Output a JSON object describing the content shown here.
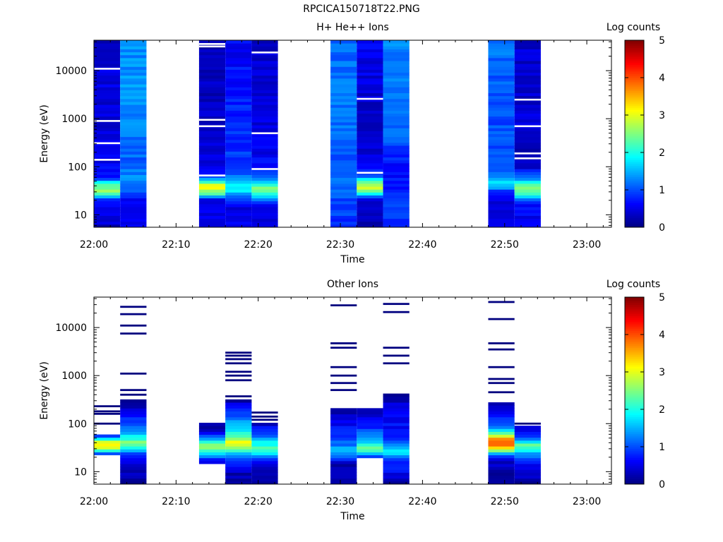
{
  "page": {
    "title": "RPCICA150718T22.PNG"
  },
  "colorbar": {
    "label": "Log counts",
    "ticks": [
      "0",
      "1",
      "2",
      "3",
      "4",
      "5"
    ],
    "range": [
      0,
      5
    ],
    "stops": [
      "#00007f",
      "#0000ff",
      "#007fff",
      "#00ffff",
      "#7fff7f",
      "#ffff00",
      "#ff7f00",
      "#ff0000",
      "#7f0000"
    ]
  },
  "chart_data": [
    {
      "type": "heatmap",
      "title": "H+ He++ Ions",
      "xlabel": "Time",
      "ylabel": "Energy (eV)",
      "x_ticks": [
        "22:00",
        "22:10",
        "22:20",
        "22:30",
        "22:40",
        "22:50",
        "23:00"
      ],
      "y_ticks": [
        "10",
        "100",
        "1000",
        "10000"
      ],
      "y_scale": "log",
      "ylim": [
        5.5,
        43000
      ],
      "xlim_minutes": [
        0,
        63
      ],
      "colorbar_label": "Log counts",
      "columns": [
        {
          "start": "22:00",
          "end": "22:03.2",
          "profile": [
            [
              5.5,
              0.3
            ],
            [
              9,
              0.5
            ],
            [
              20,
              0.6
            ],
            [
              30,
              2.6
            ],
            [
              45,
              2.3
            ],
            [
              55,
              0.9
            ],
            [
              80,
              0.6
            ],
            [
              200,
              0.5
            ],
            [
              1000,
              0.4
            ],
            [
              5000,
              0.5
            ],
            [
              43000,
              0.3
            ]
          ],
          "gaps": [
            11000,
            900,
            310,
            140
          ]
        },
        {
          "start": "22:03.2",
          "end": "22:06.4",
          "profile": [
            [
              5.5,
              0.5
            ],
            [
              20,
              0.5
            ],
            [
              30,
              1.1
            ],
            [
              60,
              1.3
            ],
            [
              150,
              1.1
            ],
            [
              500,
              1.2
            ],
            [
              2000,
              1.4
            ],
            [
              43000,
              1.3
            ]
          ],
          "gaps": []
        },
        {
          "start": "22:12.8",
          "end": "22:16",
          "profile": [
            [
              5.5,
              0.5
            ],
            [
              9,
              0.6
            ],
            [
              20,
              0.4
            ],
            [
              25,
              1.8
            ],
            [
              35,
              3.1
            ],
            [
              45,
              2.8
            ],
            [
              55,
              1.4
            ],
            [
              70,
              0.5
            ],
            [
              300,
              0.4
            ],
            [
              1000,
              0.3
            ],
            [
              43000,
              0.3
            ]
          ],
          "gaps": [
            66,
            700,
            950,
            36000,
            32000
          ]
        },
        {
          "start": "22:16",
          "end": "22:19.2",
          "profile": [
            [
              5.5,
              0.6
            ],
            [
              15,
              0.5
            ],
            [
              25,
              1.0
            ],
            [
              35,
              2.0
            ],
            [
              45,
              1.7
            ],
            [
              60,
              1.2
            ],
            [
              100,
              1.0
            ],
            [
              300,
              0.8
            ],
            [
              1000,
              0.8
            ],
            [
              5000,
              0.7
            ],
            [
              43000,
              0.6
            ]
          ],
          "gaps": []
        },
        {
          "start": "22:19.2",
          "end": "22:22.4",
          "profile": [
            [
              5.5,
              0.4
            ],
            [
              15,
              0.4
            ],
            [
              25,
              1.8
            ],
            [
              35,
              2.6
            ],
            [
              45,
              1.8
            ],
            [
              60,
              1.0
            ],
            [
              100,
              0.6
            ],
            [
              500,
              0.5
            ],
            [
              2000,
              0.4
            ],
            [
              43000,
              0.4
            ]
          ],
          "gaps": [
            90,
            500,
            24000
          ]
        },
        {
          "start": "22:28.8",
          "end": "22:32",
          "profile": [
            [
              5.5,
              0.7
            ],
            [
              9,
              0.9
            ],
            [
              20,
              1.0
            ],
            [
              40,
              1.2
            ],
            [
              80,
              1.0
            ],
            [
              200,
              1.1
            ],
            [
              1000,
              1.2
            ],
            [
              5000,
              1.2
            ],
            [
              43000,
              1.1
            ]
          ],
          "gaps": []
        },
        {
          "start": "22:32",
          "end": "22:35.2",
          "profile": [
            [
              5.5,
              0.3
            ],
            [
              20,
              0.5
            ],
            [
              25,
              1.4
            ],
            [
              35,
              2.9
            ],
            [
              50,
              2.3
            ],
            [
              65,
              1.0
            ],
            [
              100,
              0.5
            ],
            [
              500,
              0.4
            ],
            [
              2000,
              0.4
            ],
            [
              10000,
              0.5
            ],
            [
              43000,
              0.6
            ]
          ],
          "gaps": [
            75,
            2600
          ]
        },
        {
          "start": "22:35.2",
          "end": "22:38.4",
          "profile": [
            [
              5.5,
              0.8
            ],
            [
              15,
              0.9
            ],
            [
              30,
              0.7
            ],
            [
              60,
              0.7
            ],
            [
              100,
              0.5
            ],
            [
              150,
              0.8
            ],
            [
              400,
              1.1
            ],
            [
              2000,
              1.2
            ],
            [
              10000,
              1.2
            ],
            [
              43000,
              1.3
            ]
          ],
          "gaps": []
        },
        {
          "start": "22:48",
          "end": "22:51.2",
          "profile": [
            [
              5.5,
              0.6
            ],
            [
              20,
              0.5
            ],
            [
              30,
              0.8
            ],
            [
              40,
              1.6
            ],
            [
              50,
              1.9
            ],
            [
              60,
              1.4
            ],
            [
              100,
              1.0
            ],
            [
              500,
              1.0
            ],
            [
              2000,
              1.0
            ],
            [
              10000,
              1.1
            ],
            [
              43000,
              1.2
            ]
          ],
          "gaps": []
        },
        {
          "start": "22:51.2",
          "end": "22:54.4",
          "profile": [
            [
              5.5,
              0.6
            ],
            [
              15,
              0.6
            ],
            [
              20,
              0.8
            ],
            [
              25,
              1.9
            ],
            [
              35,
              2.7
            ],
            [
              45,
              2.2
            ],
            [
              60,
              1.2
            ],
            [
              100,
              0.4
            ],
            [
              300,
              0.3
            ],
            [
              1000,
              0.4
            ],
            [
              5000,
              0.4
            ],
            [
              43000,
              0.4
            ]
          ],
          "gaps": [
            700,
            150,
            190,
            2500
          ]
        }
      ]
    },
    {
      "type": "heatmap",
      "title": "Other Ions",
      "xlabel": "Time",
      "ylabel": "Energy (eV)",
      "x_ticks": [
        "22:00",
        "22:10",
        "22:20",
        "22:30",
        "22:40",
        "22:50",
        "23:00"
      ],
      "y_ticks": [
        "10",
        "100",
        "1000",
        "10000"
      ],
      "y_scale": "log",
      "ylim": [
        5.5,
        43000
      ],
      "xlim_minutes": [
        0,
        63
      ],
      "colorbar_label": "Log counts",
      "columns": [
        {
          "start": "22:00",
          "end": "22:03.2",
          "profile": [
            [
              21,
              0.4
            ],
            [
              25,
              1.0
            ],
            [
              30,
              3.0
            ],
            [
              40,
              3.2
            ],
            [
              50,
              1.5
            ],
            [
              60,
              0.3
            ]
          ],
          "lines": [
            100,
            160,
            180,
            230
          ]
        },
        {
          "start": "22:03.2",
          "end": "22:06.4",
          "profile": [
            [
              5.5,
              0.2
            ],
            [
              15,
              0.4
            ],
            [
              20,
              0.6
            ],
            [
              30,
              1.6
            ],
            [
              40,
              2.6
            ],
            [
              55,
              1.8
            ],
            [
              80,
              1.2
            ],
            [
              120,
              0.8
            ],
            [
              200,
              0.4
            ],
            [
              300,
              0.2
            ]
          ],
          "lines": [
            400,
            500,
            1100,
            7500,
            11000,
            19000,
            27000
          ]
        },
        {
          "start": "22:12.8",
          "end": "22:16",
          "profile": [
            [
              15,
              0.3
            ],
            [
              20,
              1.0
            ],
            [
              25,
              1.9
            ],
            [
              30,
              2.6
            ],
            [
              40,
              2.5
            ],
            [
              50,
              1.2
            ],
            [
              70,
              0.4
            ],
            [
              100,
              0.2
            ]
          ],
          "lines": []
        },
        {
          "start": "22:16",
          "end": "22:19.2",
          "profile": [
            [
              5.5,
              0.2
            ],
            [
              10,
              0.3
            ],
            [
              20,
              1.0
            ],
            [
              30,
              2.4
            ],
            [
              40,
              3.4
            ],
            [
              50,
              2.6
            ],
            [
              70,
              1.9
            ],
            [
              100,
              1.6
            ],
            [
              150,
              1.0
            ],
            [
              250,
              0.5
            ],
            [
              300,
              0.2
            ]
          ],
          "lines": [
            370,
            800,
            1000,
            1200,
            1800,
            2200,
            2600,
            3000
          ]
        },
        {
          "start": "22:19.2",
          "end": "22:22.4",
          "profile": [
            [
              5.5,
              0.2
            ],
            [
              15,
              0.3
            ],
            [
              20,
              1.2
            ],
            [
              30,
              2.2
            ],
            [
              40,
              1.9
            ],
            [
              55,
              1.0
            ],
            [
              80,
              0.7
            ],
            [
              100,
              0.3
            ]
          ],
          "lines": [
            120,
            140,
            170
          ]
        },
        {
          "start": "22:28.8",
          "end": "22:32",
          "profile": [
            [
              5.5,
              0.2
            ],
            [
              15,
              0.3
            ],
            [
              25,
              1.6
            ],
            [
              35,
              1.3
            ],
            [
              50,
              0.8
            ],
            [
              100,
              0.6
            ],
            [
              200,
              0.2
            ]
          ],
          "lines": [
            500,
            700,
            1000,
            1500,
            3800,
            4700,
            29000
          ]
        },
        {
          "start": "22:32",
          "end": "22:35.2",
          "profile": [
            [
              20,
              0.9
            ],
            [
              30,
              2.6
            ],
            [
              45,
              1.6
            ],
            [
              70,
              1.0
            ],
            [
              120,
              0.6
            ],
            [
              200,
              0.3
            ],
            [
              220,
              0.2
            ]
          ],
          "lines": []
        },
        {
          "start": "22:35.2",
          "end": "22:38.4",
          "profile": [
            [
              5.5,
              0.2
            ],
            [
              20,
              1.0
            ],
            [
              25,
              2.0
            ],
            [
              35,
              1.4
            ],
            [
              60,
              0.7
            ],
            [
              150,
              0.6
            ],
            [
              250,
              0.4
            ],
            [
              400,
              0.2
            ]
          ],
          "lines": [
            1800,
            2600,
            3800,
            21000,
            31000
          ]
        },
        {
          "start": "22:48",
          "end": "22:51.2",
          "profile": [
            [
              5.5,
              0.2
            ],
            [
              15,
              0.3
            ],
            [
              20,
              0.6
            ],
            [
              35,
              3.8
            ],
            [
              50,
              3.6
            ],
            [
              60,
              2.6
            ],
            [
              80,
              1.4
            ],
            [
              150,
              0.6
            ],
            [
              200,
              0.3
            ],
            [
              280,
              0.2
            ]
          ],
          "lines": [
            450,
            700,
            850,
            1500,
            3500,
            4700,
            15000,
            34000
          ]
        },
        {
          "start": "22:51.2",
          "end": "22:54.4",
          "profile": [
            [
              5.5,
              0.2
            ],
            [
              10,
              0.3
            ],
            [
              15,
              0.6
            ],
            [
              25,
              1.6
            ],
            [
              35,
              2.6
            ],
            [
              45,
              1.4
            ],
            [
              60,
              0.8
            ],
            [
              90,
              0.4
            ]
          ],
          "lines": [
            100
          ]
        }
      ]
    }
  ]
}
